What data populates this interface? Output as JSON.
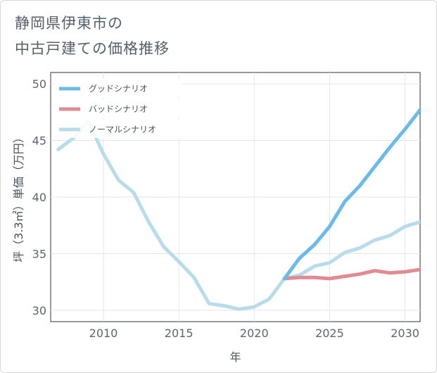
{
  "title_line1": "静岡県伊東市の",
  "title_line2": "中古戸建ての価格推移",
  "chart_data": {
    "type": "line",
    "xlabel": "年",
    "ylabel": "坪（3.3㎡）単価（万円）",
    "xlim": [
      2006.5,
      2031
    ],
    "ylim": [
      29,
      51
    ],
    "xticks": [
      2010,
      2015,
      2020,
      2025,
      2030
    ],
    "yticks": [
      30,
      35,
      40,
      45,
      50
    ],
    "grid": true,
    "legend_position": "top-left",
    "series": [
      {
        "name": "グッドシナリオ",
        "color": "#6cb9ec",
        "x": [
          2022,
          2023,
          2024,
          2025,
          2026,
          2027,
          2028,
          2029,
          2030,
          2031
        ],
        "y": [
          32.8,
          34.6,
          35.8,
          37.4,
          39.6,
          41.0,
          42.7,
          44.4,
          46.0,
          47.7
        ]
      },
      {
        "name": "バッドシナリオ",
        "color": "#e08a92",
        "x": [
          2022,
          2023,
          2024,
          2025,
          2026,
          2027,
          2028,
          2029,
          2030,
          2031
        ],
        "y": [
          32.8,
          32.9,
          32.9,
          32.8,
          33.0,
          33.2,
          33.5,
          33.3,
          33.4,
          33.6
        ]
      },
      {
        "name": "ノーマルシナリオ",
        "color": "#b8dcea",
        "x": [
          2007,
          2008,
          2009,
          2010,
          2011,
          2012,
          2013,
          2014,
          2015,
          2016,
          2017,
          2018,
          2019,
          2020,
          2021,
          2022,
          2023,
          2024,
          2025,
          2026,
          2027,
          2028,
          2029,
          2030,
          2031
        ],
        "y": [
          44.2,
          45.2,
          46.7,
          43.8,
          41.5,
          40.4,
          37.8,
          35.6,
          34.3,
          32.9,
          30.6,
          30.4,
          30.1,
          30.3,
          31.0,
          32.8,
          33.1,
          33.9,
          34.2,
          35.1,
          35.5,
          36.2,
          36.6,
          37.4,
          37.8
        ]
      }
    ]
  }
}
